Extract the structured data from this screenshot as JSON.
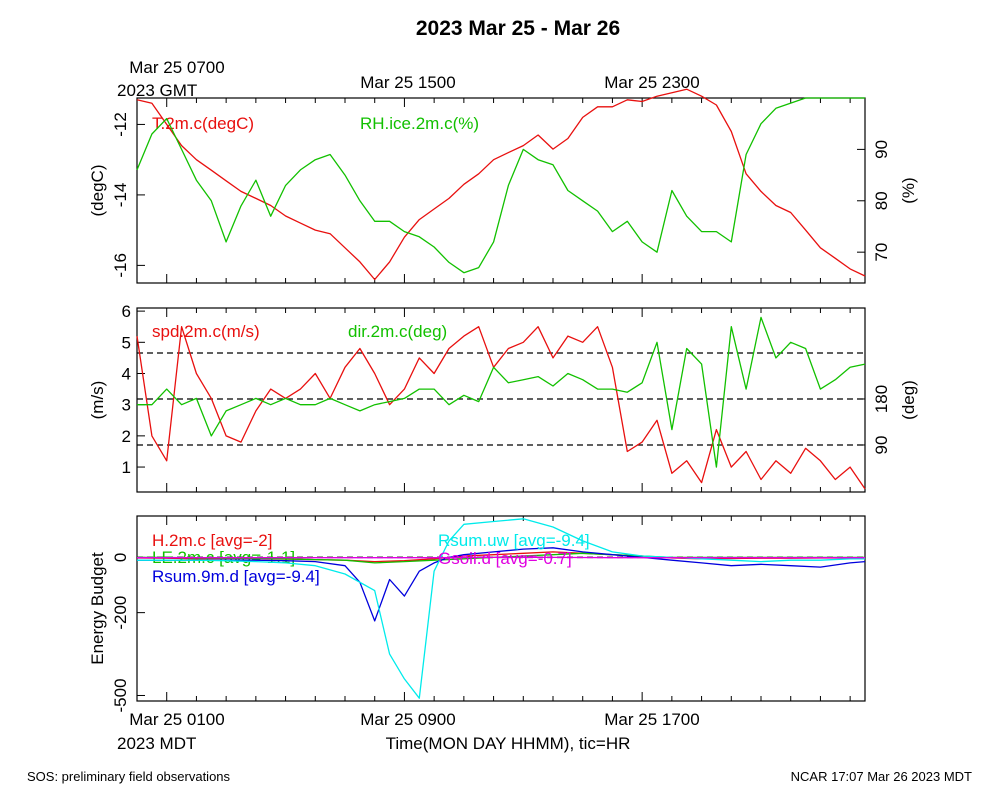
{
  "title": "2023 Mar 25 - Mar 26",
  "footer": {
    "left": "SOS: preliminary field observations",
    "right": "NCAR 17:07 Mar 26 2023 MDT"
  },
  "colors": {
    "red": "#e8100f",
    "green": "#12c000",
    "blue": "#0000dd",
    "cyan": "#00ebeb",
    "magenta": "#e000e0"
  },
  "top_time_axis": {
    "ticks": [
      "Mar 25 0700",
      "Mar 25 1500",
      "Mar 25 2300"
    ],
    "tick_hours": [
      0,
      8,
      16
    ],
    "sub": "2023 GMT"
  },
  "bottom_time_axis": {
    "ticks": [
      "Mar 25 0100",
      "Mar 25 0900",
      "Mar 25 1700"
    ],
    "tick_hours": [
      0,
      8,
      16
    ],
    "sub": "2023 MDT",
    "label": "Time(MON DAY HHMM), tic=HR"
  },
  "chart_data": [
    {
      "type": "line",
      "name_key": "temperature_humidity",
      "x_unit": "hours since Mar 25 0000 MDT",
      "xlim": [
        -1,
        23.5
      ],
      "left_axis": {
        "label": "(degC)",
        "ylim": [
          -16.5,
          -11.25
        ],
        "ticks": [
          -16,
          -14,
          -12
        ]
      },
      "right_axis": {
        "label": "(%)",
        "ylim": [
          64,
          100
        ],
        "ticks": [
          70,
          80,
          90
        ]
      },
      "series": [
        {
          "name": "T.2m.c(degC)",
          "color": "red",
          "axis": "left",
          "x": [
            -1,
            -0.5,
            0,
            0.5,
            1,
            1.5,
            2,
            2.5,
            3,
            3.5,
            4,
            4.5,
            5,
            5.5,
            6,
            6.5,
            7,
            7.5,
            8,
            8.5,
            9,
            9.5,
            10,
            10.5,
            11,
            11.5,
            12,
            12.5,
            13,
            13.5,
            14,
            14.5,
            15,
            15.5,
            16,
            16.5,
            17,
            17.5,
            18,
            18.5,
            19,
            19.5,
            20,
            20.5,
            21,
            21.5,
            22,
            22.5,
            23,
            23.5
          ],
          "values": [
            -11.3,
            -11.4,
            -12.0,
            -12.6,
            -13.0,
            -13.3,
            -13.6,
            -13.9,
            -14.1,
            -14.3,
            -14.6,
            -14.8,
            -15.0,
            -15.1,
            -15.5,
            -15.9,
            -16.4,
            -15.9,
            -15.2,
            -14.7,
            -14.4,
            -14.1,
            -13.7,
            -13.4,
            -13.0,
            -12.8,
            -12.6,
            -12.3,
            -12.7,
            -12.4,
            -11.8,
            -11.5,
            -11.5,
            -11.3,
            -11.35,
            -11.2,
            -11.1,
            -11.0,
            -11.2,
            -11.45,
            -12.2,
            -13.4,
            -13.9,
            -14.3,
            -14.5,
            -15.0,
            -15.5,
            -15.8,
            -16.1,
            -16.3
          ]
        },
        {
          "name": "RH.ice.2m.c(%)",
          "color": "green",
          "axis": "right",
          "x": [
            -1,
            -0.5,
            0,
            0.5,
            1,
            1.5,
            2,
            2.5,
            3,
            3.5,
            4,
            4.5,
            5,
            5.5,
            6,
            6.5,
            7,
            7.5,
            8,
            8.5,
            9,
            9.5,
            10,
            10.5,
            11,
            11.5,
            12,
            12.5,
            13,
            13.5,
            14,
            14.5,
            15,
            15.5,
            16,
            16.5,
            17,
            17.5,
            18,
            18.5,
            19,
            19.5,
            20,
            20.5,
            21,
            21.5,
            22,
            22.5,
            23,
            23.5
          ],
          "values": [
            86,
            93,
            96,
            90,
            84,
            80,
            72,
            79,
            84,
            77,
            83,
            86,
            88,
            89,
            85,
            80,
            76,
            76,
            74,
            73,
            71,
            68,
            66,
            67,
            72,
            83,
            90,
            88,
            87,
            82,
            80,
            78,
            74,
            76,
            72,
            70,
            82,
            77,
            74,
            74,
            72,
            89,
            95,
            98,
            99,
            100,
            100,
            100,
            100,
            100
          ]
        }
      ]
    },
    {
      "type": "line",
      "name_key": "wind",
      "x_unit": "hours since Mar 25 0000 MDT",
      "xlim": [
        -1,
        23.5
      ],
      "left_axis": {
        "label": "(m/s)",
        "ylim": [
          0.2,
          6.1
        ],
        "ticks": [
          1,
          2,
          3,
          4,
          5,
          6
        ]
      },
      "right_axis": {
        "label": "(deg)",
        "ylim": [
          -2,
          358
        ],
        "ticks": [
          90,
          180
        ]
      },
      "dashed_ref_lines_right": [
        90,
        180,
        270
      ],
      "series": [
        {
          "name": "spd.2m.c(m/s)",
          "color": "red",
          "axis": "left",
          "x": [
            -1,
            -0.5,
            0,
            0.5,
            1,
            1.5,
            2,
            2.5,
            3,
            3.5,
            4,
            4.5,
            5,
            5.5,
            6,
            6.5,
            7,
            7.5,
            8,
            8.5,
            9,
            9.5,
            10,
            10.5,
            11,
            11.5,
            12,
            12.5,
            13,
            13.5,
            14,
            14.5,
            15,
            15.5,
            16,
            16.5,
            17,
            17.5,
            18,
            18.5,
            19,
            19.5,
            20,
            20.5,
            21,
            21.5,
            22,
            22.5,
            23,
            23.5
          ],
          "values": [
            5.2,
            2.0,
            1.2,
            5.5,
            4.0,
            3.2,
            2.0,
            1.8,
            2.8,
            3.5,
            3.2,
            3.5,
            4.0,
            3.2,
            4.2,
            4.8,
            4.0,
            3.0,
            3.5,
            4.5,
            4.0,
            4.8,
            5.2,
            5.5,
            4.2,
            4.8,
            5.0,
            5.5,
            4.5,
            5.2,
            5.0,
            5.5,
            4.2,
            1.5,
            1.8,
            2.5,
            0.8,
            1.2,
            0.5,
            2.2,
            1.0,
            1.5,
            0.6,
            1.2,
            0.8,
            1.6,
            1.2,
            0.6,
            1.0,
            0.3
          ]
        },
        {
          "name": "dir.2m.c(deg)",
          "color": "green",
          "axis": "left",
          "x": [
            -1,
            -0.5,
            0,
            0.5,
            1,
            1.5,
            2,
            2.5,
            3,
            3.5,
            4,
            4.5,
            5,
            5.5,
            6,
            6.5,
            7,
            7.5,
            8,
            8.5,
            9,
            9.5,
            10,
            10.5,
            11,
            11.5,
            12,
            12.5,
            13,
            13.5,
            14,
            14.5,
            15,
            15.5,
            16,
            16.5,
            17,
            17.5,
            18,
            18.5,
            19,
            19.5,
            20,
            20.5,
            21,
            21.5,
            22,
            22.5,
            23,
            23.5
          ],
          "values": [
            3.0,
            3.0,
            3.5,
            3.0,
            3.2,
            2.0,
            2.8,
            3.0,
            3.2,
            3.0,
            3.2,
            3.0,
            3.0,
            3.2,
            3.0,
            2.8,
            3.0,
            3.1,
            3.2,
            3.5,
            3.5,
            3.0,
            3.3,
            3.1,
            4.2,
            3.7,
            3.8,
            3.9,
            3.6,
            4.0,
            3.8,
            3.5,
            3.5,
            3.4,
            3.7,
            5.0,
            2.2,
            4.8,
            4.3,
            1.0,
            5.5,
            3.5,
            5.8,
            4.5,
            5.0,
            4.8,
            3.5,
            3.8,
            4.2,
            4.3
          ]
        }
      ]
    },
    {
      "type": "line",
      "name_key": "energy_budget",
      "x_unit": "hours since Mar 25 0000 MDT",
      "xlim": [
        -1,
        23.5
      ],
      "left_axis": {
        "label": "Energy Budget",
        "ylim": [
          -520,
          150
        ],
        "ticks": [
          -500,
          -200,
          0
        ]
      },
      "series": [
        {
          "name": "H.2m.c [avg=-2]",
          "color": "red",
          "x": [
            -1,
            0,
            1,
            2,
            3,
            4,
            5,
            6,
            7,
            8,
            9,
            10,
            11,
            12,
            13,
            14,
            15,
            16,
            17,
            18,
            19,
            20,
            21,
            22,
            23,
            23.5
          ],
          "values": [
            -2,
            -3,
            -5,
            -4,
            -4,
            -6,
            -8,
            -10,
            -15,
            -12,
            -5,
            5,
            10,
            15,
            20,
            15,
            10,
            5,
            -2,
            -5,
            -4,
            -3,
            -3,
            -2,
            -2,
            -2
          ]
        },
        {
          "name": "LE.2m.c [avg=-1.1]",
          "color": "green",
          "x": [
            -1,
            0,
            1,
            2,
            3,
            4,
            5,
            6,
            7,
            8,
            9,
            10,
            11,
            12,
            13,
            14,
            15,
            16,
            17,
            18,
            19,
            20,
            21,
            22,
            23,
            23.5
          ],
          "values": [
            0,
            0,
            -2,
            -3,
            -3,
            -5,
            -8,
            -10,
            -20,
            -15,
            -10,
            -5,
            0,
            5,
            10,
            15,
            10,
            5,
            0,
            0,
            0,
            0,
            0,
            0,
            0,
            0
          ]
        },
        {
          "name": "Rsum.9m.d [avg=-9.4]",
          "color": "blue",
          "x": [
            -1,
            0,
            1,
            2,
            3,
            4,
            5,
            6,
            6.5,
            7,
            7.5,
            8,
            8.5,
            9,
            9.5,
            10,
            11,
            12,
            13,
            14,
            15,
            16,
            17,
            18,
            19,
            20,
            21,
            22,
            23,
            23.5
          ],
          "values": [
            -10,
            -10,
            -10,
            -10,
            -10,
            -12,
            -15,
            -30,
            -90,
            -230,
            -80,
            -140,
            -50,
            -20,
            0,
            10,
            20,
            30,
            35,
            20,
            10,
            0,
            -10,
            -20,
            -30,
            -25,
            -30,
            -35,
            -20,
            -15
          ]
        },
        {
          "name": "Rsum.uw [avg=-9.4]",
          "color": "cyan",
          "x": [
            -1,
            0,
            1,
            2,
            3,
            4,
            5,
            6,
            7,
            7.5,
            8,
            8.5,
            9,
            9.5,
            10,
            11,
            12,
            13,
            14,
            15,
            16,
            17,
            18,
            19,
            20,
            21,
            22,
            23,
            23.5
          ],
          "values": [
            -10,
            -10,
            -10,
            -12,
            -15,
            -20,
            -30,
            -60,
            -120,
            -350,
            -440,
            -510,
            -50,
            60,
            120,
            130,
            140,
            110,
            60,
            20,
            5,
            0,
            -5,
            -10,
            -15,
            -10,
            -10,
            -5,
            -5
          ]
        },
        {
          "name": "Gsoil.d [avg=-0.7]",
          "color": "magenta",
          "x": [
            -1,
            1,
            3,
            5,
            7,
            9,
            11,
            13,
            15,
            17,
            19,
            21,
            23,
            23.5
          ],
          "values": [
            -1,
            -1,
            -1,
            -1,
            -1,
            -1,
            0,
            0,
            -1,
            -1,
            -1,
            -1,
            -1,
            -1
          ]
        }
      ]
    }
  ]
}
